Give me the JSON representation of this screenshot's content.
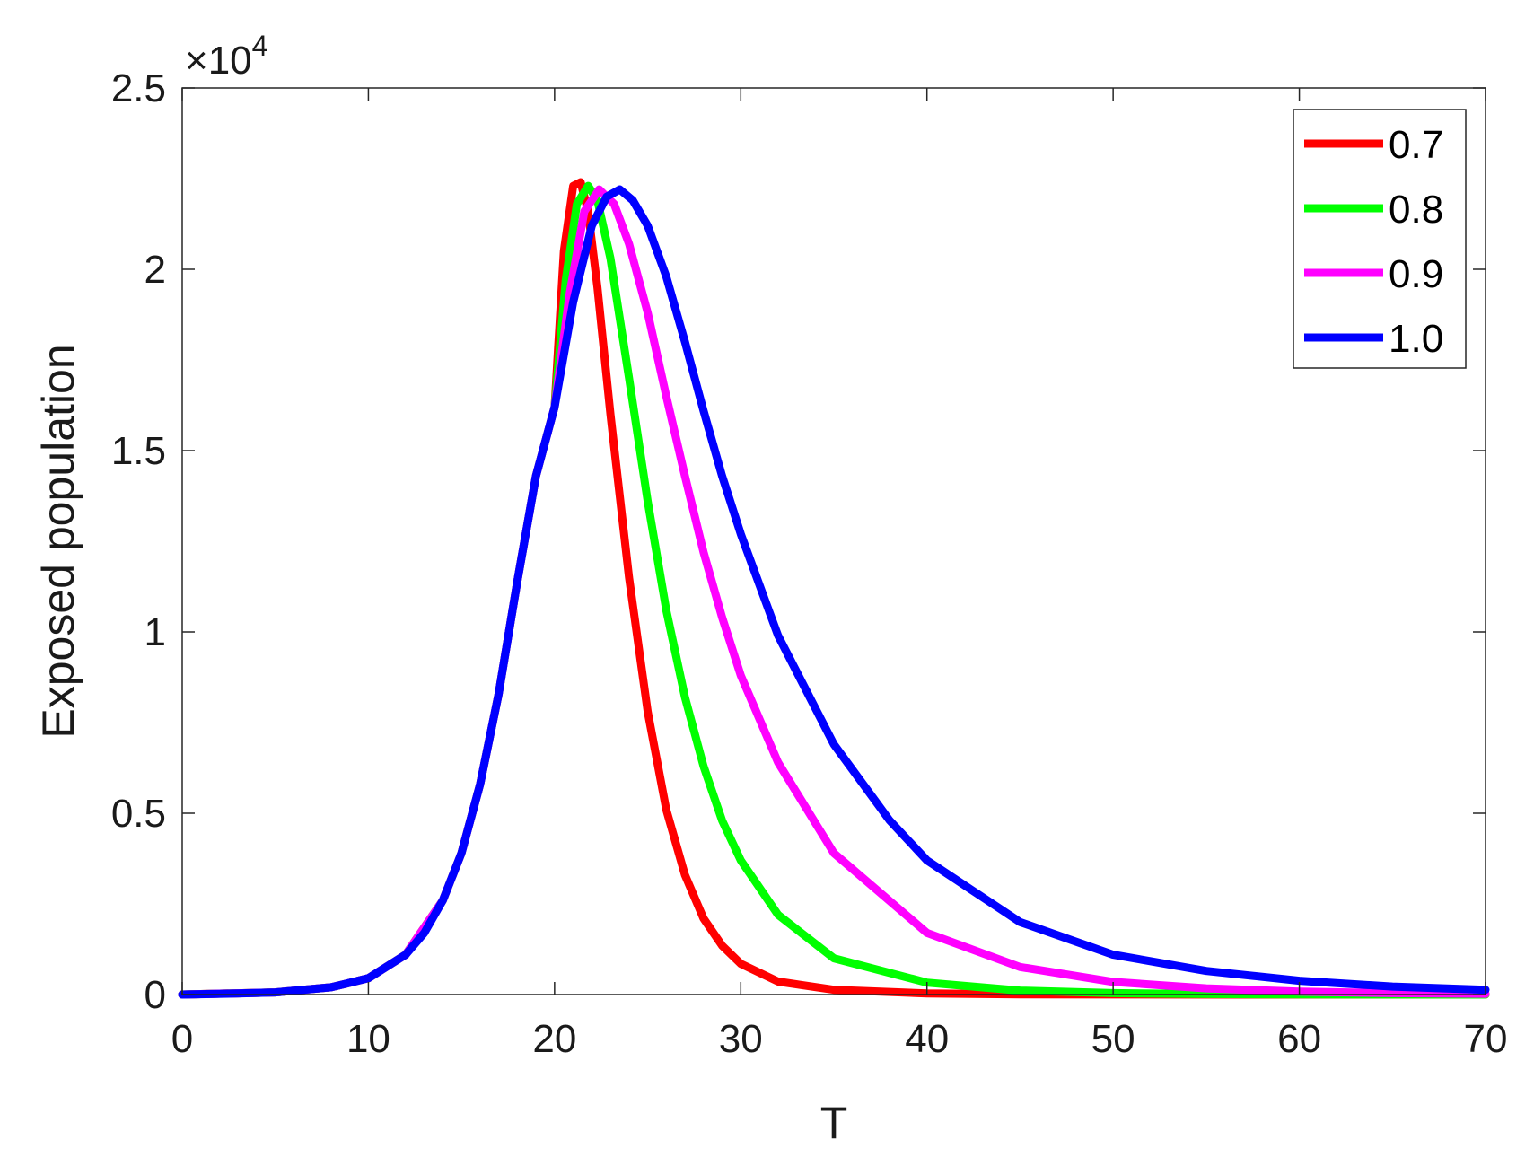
{
  "chart_data": {
    "type": "line",
    "title": "",
    "xlabel": "T",
    "ylabel": "Exposed population",
    "y_multiplier_label": "×10",
    "y_multiplier_exponent": "4",
    "xlim": [
      0,
      70
    ],
    "ylim": [
      0,
      25000
    ],
    "x_ticks": [
      0,
      10,
      20,
      30,
      40,
      50,
      60,
      70
    ],
    "x_tick_labels": [
      "0",
      "10",
      "20",
      "30",
      "40",
      "50",
      "60",
      "70"
    ],
    "y_ticks": [
      0,
      5000,
      10000,
      15000,
      20000,
      25000
    ],
    "y_tick_labels": [
      "0",
      "0.5",
      "1",
      "1.5",
      "2",
      "2.5"
    ],
    "grid": false,
    "legend_position": "top-right",
    "series": [
      {
        "name": "0.7",
        "color": "#ff0000",
        "points": [
          [
            0,
            0
          ],
          [
            5,
            60
          ],
          [
            8,
            200
          ],
          [
            10,
            450
          ],
          [
            12,
            1100
          ],
          [
            14,
            2600
          ],
          [
            15,
            3900
          ],
          [
            16,
            5800
          ],
          [
            17,
            8300
          ],
          [
            18,
            11400
          ],
          [
            19,
            14300
          ],
          [
            20,
            16200
          ],
          [
            20.5,
            20500
          ],
          [
            21,
            22300
          ],
          [
            21.4,
            22400
          ],
          [
            21.8,
            21600
          ],
          [
            22.3,
            19500
          ],
          [
            23,
            16000
          ],
          [
            24,
            11500
          ],
          [
            25,
            7800
          ],
          [
            26,
            5100
          ],
          [
            27,
            3300
          ],
          [
            28,
            2100
          ],
          [
            29,
            1350
          ],
          [
            30,
            850
          ],
          [
            32,
            360
          ],
          [
            35,
            130
          ],
          [
            40,
            30
          ],
          [
            45,
            8
          ],
          [
            50,
            2
          ],
          [
            60,
            0
          ],
          [
            70,
            0
          ]
        ]
      },
      {
        "name": "0.8",
        "color": "#00ff00",
        "points": [
          [
            0,
            0
          ],
          [
            5,
            60
          ],
          [
            8,
            200
          ],
          [
            10,
            450
          ],
          [
            12,
            1100
          ],
          [
            14,
            2600
          ],
          [
            15,
            3900
          ],
          [
            16,
            5800
          ],
          [
            17,
            8300
          ],
          [
            18,
            11400
          ],
          [
            19,
            14300
          ],
          [
            20,
            16200
          ],
          [
            20.6,
            19700
          ],
          [
            21.2,
            21800
          ],
          [
            21.8,
            22300
          ],
          [
            22.3,
            21900
          ],
          [
            23,
            20300
          ],
          [
            24,
            17000
          ],
          [
            25,
            13600
          ],
          [
            26,
            10600
          ],
          [
            27,
            8200
          ],
          [
            28,
            6300
          ],
          [
            29,
            4800
          ],
          [
            30,
            3700
          ],
          [
            32,
            2200
          ],
          [
            35,
            1000
          ],
          [
            40,
            330
          ],
          [
            45,
            110
          ],
          [
            50,
            40
          ],
          [
            55,
            14
          ],
          [
            60,
            5
          ],
          [
            70,
            0
          ]
        ]
      },
      {
        "name": "0.9",
        "color": "#ff00ff",
        "points": [
          [
            0,
            0
          ],
          [
            5,
            60
          ],
          [
            8,
            200
          ],
          [
            10,
            450
          ],
          [
            12,
            1100
          ],
          [
            14,
            2600
          ],
          [
            15,
            3900
          ],
          [
            16,
            5800
          ],
          [
            17,
            8300
          ],
          [
            18,
            11400
          ],
          [
            19,
            14300
          ],
          [
            20,
            16200
          ],
          [
            20.8,
            19300
          ],
          [
            21.6,
            21600
          ],
          [
            22.4,
            22200
          ],
          [
            23.2,
            21800
          ],
          [
            24,
            20700
          ],
          [
            25,
            18800
          ],
          [
            26,
            16500
          ],
          [
            27,
            14300
          ],
          [
            28,
            12200
          ],
          [
            29,
            10400
          ],
          [
            30,
            8800
          ],
          [
            32,
            6400
          ],
          [
            35,
            3900
          ],
          [
            40,
            1700
          ],
          [
            45,
            760
          ],
          [
            50,
            350
          ],
          [
            55,
            170
          ],
          [
            60,
            80
          ],
          [
            65,
            40
          ],
          [
            70,
            20
          ]
        ]
      },
      {
        "name": "1.0",
        "color": "#0000ff",
        "points": [
          [
            0,
            0
          ],
          [
            3,
            30
          ],
          [
            5,
            60
          ],
          [
            8,
            200
          ],
          [
            10,
            450
          ],
          [
            12,
            1100
          ],
          [
            13,
            1700
          ],
          [
            14,
            2600
          ],
          [
            15,
            3900
          ],
          [
            16,
            5800
          ],
          [
            17,
            8300
          ],
          [
            18,
            11400
          ],
          [
            19,
            14300
          ],
          [
            20,
            16200
          ],
          [
            21,
            19100
          ],
          [
            22,
            21200
          ],
          [
            22.8,
            22000
          ],
          [
            23.5,
            22200
          ],
          [
            24.2,
            21900
          ],
          [
            25,
            21200
          ],
          [
            26,
            19800
          ],
          [
            27,
            18000
          ],
          [
            28,
            16100
          ],
          [
            29,
            14300
          ],
          [
            30,
            12700
          ],
          [
            32,
            9900
          ],
          [
            35,
            6900
          ],
          [
            38,
            4800
          ],
          [
            40,
            3700
          ],
          [
            45,
            2000
          ],
          [
            50,
            1100
          ],
          [
            55,
            650
          ],
          [
            60,
            380
          ],
          [
            65,
            220
          ],
          [
            70,
            130
          ]
        ]
      }
    ]
  }
}
